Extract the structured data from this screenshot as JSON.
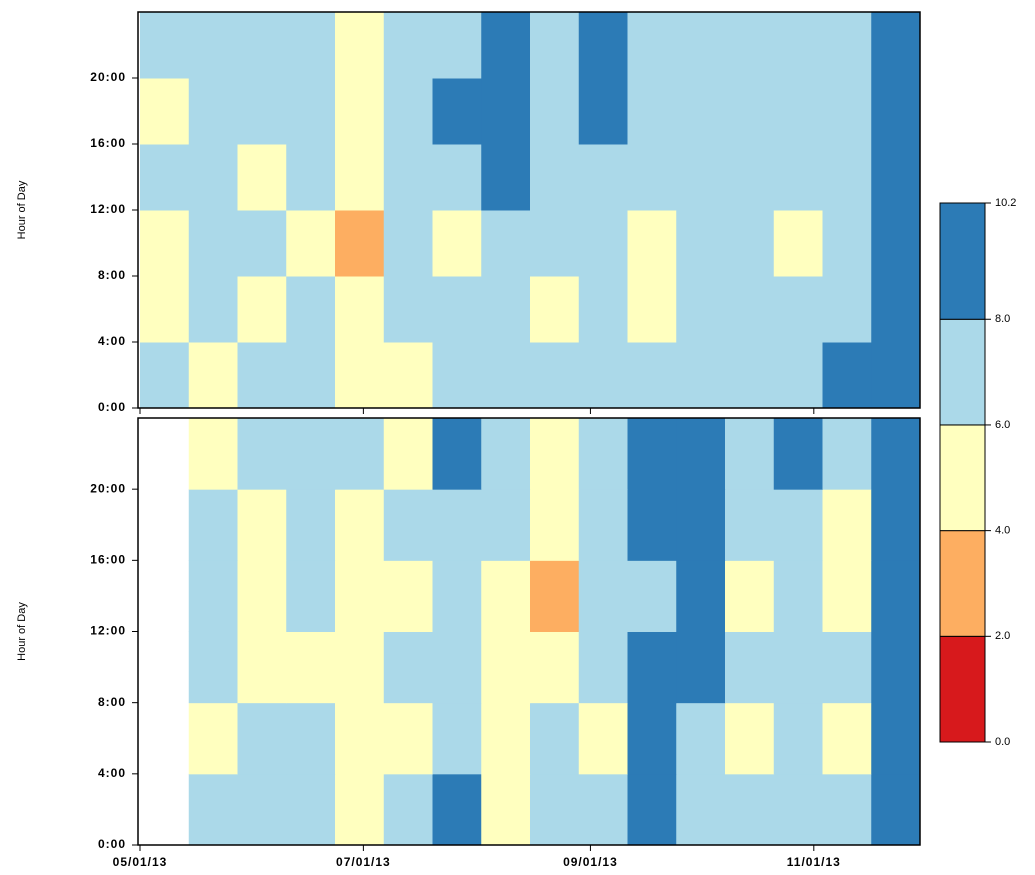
{
  "chart_data": {
    "type": "heatmap",
    "xlim": [
      "05/01/13",
      "11/30/13"
    ],
    "xticks": [
      "05/01/13",
      "07/01/13",
      "09/01/13",
      "11/01/13"
    ],
    "panels": [
      {
        "ylabel": "Hour of Day",
        "ylim": [
          0,
          24
        ],
        "yticks": [
          {
            "value": 0,
            "label": "0:00"
          },
          {
            "value": 4,
            "label": "4:00"
          },
          {
            "value": 8,
            "label": "8:00"
          },
          {
            "value": 12,
            "label": "12:00"
          },
          {
            "value": 16,
            "label": "16:00"
          },
          {
            "value": 20,
            "label": "20:00"
          }
        ],
        "z": [
          [
            7,
            5,
            7,
            7,
            5,
            5,
            7,
            7,
            7,
            7,
            7,
            7,
            7,
            7,
            9,
            9
          ],
          [
            5,
            7,
            5,
            7,
            5,
            7,
            7,
            7,
            5,
            7,
            5,
            7,
            7,
            7,
            7,
            9
          ],
          [
            5,
            7,
            7,
            5,
            3,
            7,
            5,
            7,
            7,
            7,
            5,
            7,
            7,
            5,
            7,
            9
          ],
          [
            7,
            7,
            5,
            7,
            5,
            7,
            7,
            9,
            7,
            7,
            7,
            7,
            7,
            7,
            7,
            9
          ],
          [
            5,
            7,
            7,
            7,
            5,
            7,
            9,
            9,
            7,
            9,
            7,
            7,
            7,
            7,
            7,
            9
          ],
          [
            7,
            7,
            7,
            7,
            5,
            7,
            7,
            9,
            7,
            9,
            7,
            7,
            7,
            7,
            7,
            9
          ]
        ]
      },
      {
        "ylabel": "Hour of Day",
        "ylim": [
          0,
          24
        ],
        "yticks": [
          {
            "value": 0,
            "label": "0:00"
          },
          {
            "value": 4,
            "label": "4:00"
          },
          {
            "value": 8,
            "label": "8:00"
          },
          {
            "value": 12,
            "label": "12:00"
          },
          {
            "value": 16,
            "label": "16:00"
          },
          {
            "value": 20,
            "label": "20:00"
          }
        ],
        "z": [
          [
            null,
            7,
            7,
            7,
            5,
            7,
            9,
            5,
            7,
            7,
            9,
            7,
            7,
            7,
            7,
            9
          ],
          [
            null,
            5,
            7,
            7,
            5,
            5,
            7,
            5,
            7,
            5,
            9,
            7,
            5,
            7,
            5,
            9
          ],
          [
            null,
            7,
            5,
            5,
            5,
            7,
            7,
            5,
            5,
            7,
            9,
            9,
            7,
            7,
            7,
            9
          ],
          [
            null,
            7,
            5,
            7,
            5,
            5,
            7,
            5,
            3,
            7,
            7,
            9,
            5,
            7,
            5,
            9
          ],
          [
            null,
            7,
            5,
            7,
            5,
            7,
            7,
            7,
            5,
            7,
            9,
            9,
            7,
            7,
            5,
            9
          ],
          [
            null,
            5,
            7,
            7,
            7,
            5,
            9,
            7,
            5,
            7,
            9,
            9,
            7,
            9,
            7,
            9
          ]
        ]
      }
    ],
    "colorkey": {
      "levels": [
        0,
        2,
        4,
        6,
        8,
        10.2
      ],
      "colors": [
        "#d7191c",
        "#fdae61",
        "#ffffbf",
        "#abd9e9",
        "#2c7bb6"
      ],
      "ticks": [
        {
          "value": 0,
          "label": "0.0"
        },
        {
          "value": 2,
          "label": "2.0"
        },
        {
          "value": 4,
          "label": "4.0"
        },
        {
          "value": 6,
          "label": "6.0"
        },
        {
          "value": 8,
          "label": "8.0"
        },
        10.2
      ]
    }
  }
}
